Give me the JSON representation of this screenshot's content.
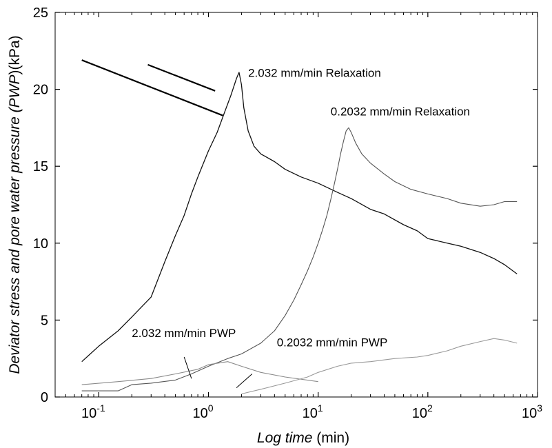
{
  "chart_data": {
    "type": "line",
    "xscale": "log",
    "xlim": [
      0.04,
      1000
    ],
    "ylim": [
      0,
      25
    ],
    "xlabel": {
      "italic": "Log time",
      "plain": " (min)"
    },
    "ylabel": {
      "italic1": "Deviator stress and pore water pressure (",
      "italic2": "PWP",
      "plain": ")(kPa)"
    },
    "y_ticks": [
      0,
      5,
      10,
      15,
      20,
      25
    ],
    "x_ticks": [
      {
        "value": 0.1,
        "base": "10",
        "exp": "-1"
      },
      {
        "value": 1,
        "base": "10",
        "exp": "0"
      },
      {
        "value": 10,
        "base": "10",
        "exp": "1"
      },
      {
        "value": 100,
        "base": "10",
        "exp": "2"
      },
      {
        "value": 1000,
        "base": "10",
        "exp": "3"
      }
    ],
    "grid": false,
    "series": [
      {
        "name": "2.032 mm/min Relaxation",
        "color": "#111111",
        "x": [
          0.07,
          0.1,
          0.15,
          0.2,
          0.3,
          0.4,
          0.5,
          0.6,
          0.7,
          0.8,
          0.9,
          1.0,
          1.2,
          1.4,
          1.6,
          1.8,
          1.9,
          2.0,
          2.1,
          2.3,
          2.6,
          3,
          4,
          5,
          7,
          10,
          15,
          20,
          30,
          40,
          60,
          80,
          100,
          150,
          200,
          300,
          400,
          500,
          650
        ],
        "y": [
          2.3,
          3.3,
          4.3,
          5.2,
          6.5,
          8.8,
          10.5,
          11.8,
          13.2,
          14.3,
          15.2,
          16.0,
          17.2,
          18.5,
          19.6,
          20.7,
          21.1,
          20.3,
          18.8,
          17.3,
          16.3,
          15.8,
          15.3,
          14.8,
          14.3,
          13.9,
          13.3,
          12.9,
          12.2,
          11.9,
          11.2,
          10.8,
          10.3,
          10.0,
          9.8,
          9.4,
          9.0,
          8.6,
          8.0
        ]
      },
      {
        "name": "0.2032 mm/min Relaxation",
        "color": "#555555",
        "x": [
          0.07,
          0.15,
          0.2,
          0.3,
          0.5,
          0.7,
          1.0,
          1.5,
          2,
          3,
          4,
          5,
          6,
          7,
          8,
          9,
          10,
          11,
          12,
          13,
          14,
          15,
          16,
          17,
          18,
          19,
          20,
          22,
          25,
          30,
          40,
          50,
          70,
          100,
          150,
          200,
          300,
          400,
          500,
          650
        ],
        "y": [
          0.4,
          0.4,
          0.8,
          0.9,
          1.1,
          1.5,
          2.0,
          2.5,
          2.8,
          3.5,
          4.3,
          5.3,
          6.3,
          7.3,
          8.2,
          9.1,
          10.0,
          10.9,
          11.8,
          12.8,
          13.8,
          14.8,
          15.8,
          16.6,
          17.3,
          17.5,
          17.2,
          16.5,
          15.8,
          15.2,
          14.5,
          14.0,
          13.5,
          13.2,
          12.9,
          12.6,
          12.4,
          12.5,
          12.7,
          12.7
        ]
      },
      {
        "name": "2.032 mm/min PWP",
        "color": "#8a8a8a",
        "x": [
          0.07,
          0.15,
          0.3,
          0.5,
          0.8,
          1.0,
          1.5,
          2,
          3,
          5,
          10
        ],
        "y": [
          0.8,
          1.0,
          1.2,
          1.5,
          1.8,
          2.1,
          2.3,
          2.0,
          1.6,
          1.3,
          1.0
        ]
      },
      {
        "name": "0.2032 mm/min PWP",
        "color": "#999999",
        "x": [
          2,
          3,
          5,
          8,
          10,
          15,
          20,
          30,
          50,
          80,
          100,
          150,
          200,
          300,
          400,
          500,
          650
        ],
        "y": [
          0.2,
          0.5,
          0.9,
          1.3,
          1.6,
          2.0,
          2.2,
          2.3,
          2.5,
          2.6,
          2.7,
          3.0,
          3.3,
          3.6,
          3.8,
          3.7,
          3.5
        ]
      }
    ],
    "annotations": [
      {
        "text": "2.032 mm/min Relaxation",
        "x": 2.3,
        "y": 20.8
      },
      {
        "text": "0.2032 mm/min Relaxation",
        "x": 13,
        "y": 18.3
      },
      {
        "text": "2.032 mm/min PWP",
        "x": 0.2,
        "y": 3.9
      },
      {
        "text": "0.2032 mm/min PWP",
        "x": 4.2,
        "y": 3.3
      }
    ],
    "leader_lines": [
      {
        "from": [
          0.07,
          21.9
        ],
        "to": [
          1.35,
          18.3
        ]
      },
      {
        "from": [
          0.28,
          21.6
        ],
        "to": [
          1.15,
          19.9
        ]
      },
      {
        "from": [
          0.6,
          2.6
        ],
        "to": [
          0.7,
          1.2
        ]
      },
      {
        "from": [
          2.5,
          1.5
        ],
        "to": [
          1.8,
          0.6
        ]
      }
    ]
  }
}
